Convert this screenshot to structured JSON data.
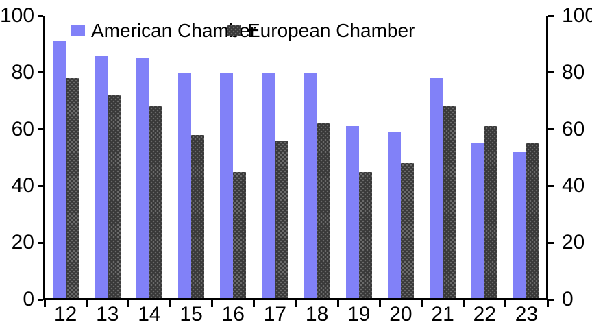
{
  "chart_data": {
    "type": "bar",
    "title": "",
    "categories": [
      "12",
      "13",
      "14",
      "15",
      "16",
      "17",
      "18",
      "19",
      "20",
      "21",
      "22",
      "23"
    ],
    "series": [
      {
        "name": "American Chamber",
        "color": "#8181F8",
        "pattern": "solid",
        "values": [
          91,
          86,
          85,
          80,
          80,
          80,
          80,
          61,
          59,
          78,
          55,
          52
        ]
      },
      {
        "name": "European Chamber",
        "color": "#383838",
        "pattern": "dots",
        "values": [
          78,
          72,
          68,
          58,
          45,
          56,
          62,
          45,
          48,
          68,
          61,
          55
        ]
      }
    ],
    "xlabel": "",
    "ylabel": "",
    "ylim": [
      0,
      100
    ],
    "yticks": [
      0,
      20,
      40,
      60,
      80,
      100
    ],
    "y_axis_left": true,
    "y_axis_right": true,
    "legend_position": "top-inside",
    "grid": false,
    "axis_color": "#000000",
    "background": "#FFFFFF"
  }
}
